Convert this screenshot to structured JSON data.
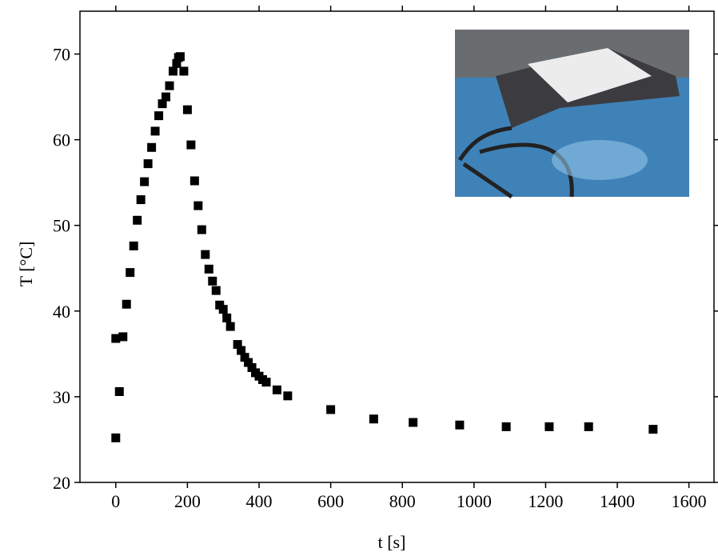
{
  "chart_data": {
    "type": "scatter",
    "xlabel": "t [s]",
    "ylabel": "T [°C]",
    "x": [
      0,
      0,
      10,
      20,
      30,
      40,
      50,
      60,
      70,
      80,
      90,
      100,
      110,
      120,
      130,
      140,
      150,
      160,
      170,
      175,
      180,
      190,
      200,
      210,
      220,
      230,
      240,
      250,
      260,
      270,
      280,
      290,
      300,
      310,
      320,
      340,
      350,
      360,
      370,
      380,
      390,
      400,
      410,
      420,
      450,
      480,
      600,
      720,
      830,
      960,
      1090,
      1210,
      1320,
      1500
    ],
    "series": [
      {
        "color": "#000000",
        "values": [
          25.2,
          36.8,
          30.6,
          37.0,
          40.8,
          44.5,
          47.6,
          50.6,
          53.0,
          55.1,
          57.2,
          59.1,
          61.0,
          62.8,
          64.2,
          65.0,
          66.3,
          68.0,
          68.9,
          69.6,
          69.7,
          68.0,
          63.5,
          59.4,
          55.2,
          52.3,
          49.5,
          46.6,
          44.9,
          43.5,
          42.4,
          40.7,
          40.2,
          39.2,
          38.2,
          36.1,
          35.4,
          34.6,
          34.0,
          33.4,
          32.8,
          32.4,
          32.0,
          31.7,
          30.8,
          30.1,
          28.5,
          27.4,
          27.0,
          26.7,
          26.5,
          26.5,
          26.5,
          26.2
        ]
      }
    ],
    "xlim": [
      -100,
      1670
    ],
    "ylim": [
      20,
      75
    ],
    "xticks": [
      0,
      200,
      400,
      600,
      800,
      1000,
      1200,
      1400,
      1600
    ],
    "yticks": [
      20,
      30,
      40,
      50,
      60,
      70
    ]
  }
}
